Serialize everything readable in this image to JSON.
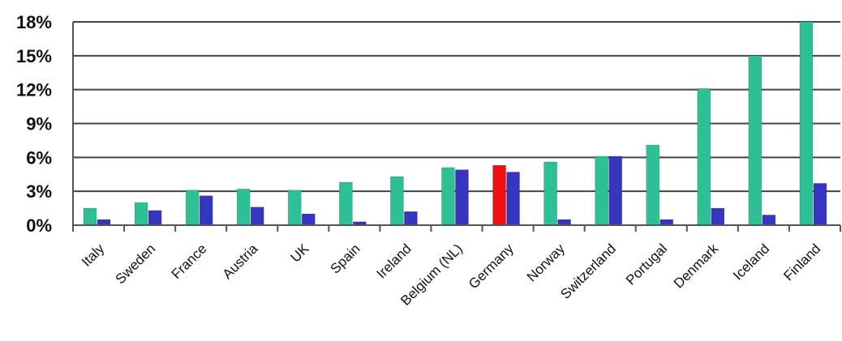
{
  "chart_data": {
    "type": "bar",
    "categories": [
      "Italy",
      "Sweden",
      "France",
      "Austria",
      "UK",
      "Spain",
      "Ireland",
      "Belgium (NL)",
      "Germany",
      "Norway",
      "Switzerland",
      "Portugal",
      "Denmark",
      "Iceland",
      "Finland"
    ],
    "series": [
      {
        "values": [
          1.5,
          2.0,
          3.1,
          3.2,
          3.1,
          3.8,
          4.3,
          5.1,
          5.3,
          5.6,
          6.1,
          7.1,
          12.1,
          15.0,
          18.0
        ],
        "color": "#2dbf95"
      },
      {
        "values": [
          0.5,
          1.3,
          2.6,
          1.6,
          1.0,
          0.3,
          1.2,
          4.9,
          4.7,
          0.5,
          6.1,
          0.5,
          1.5,
          0.9,
          3.7
        ],
        "color": "#3535c0"
      }
    ],
    "highlight": {
      "category": "Germany",
      "series": 0,
      "color": "#ee1111"
    },
    "yticks": [
      "0%",
      "3%",
      "6%",
      "9%",
      "12%",
      "15%",
      "18%"
    ],
    "ylim": [
      0,
      18
    ],
    "title": "",
    "xlabel": "",
    "ylabel": "",
    "grid": true,
    "legend": "none"
  }
}
